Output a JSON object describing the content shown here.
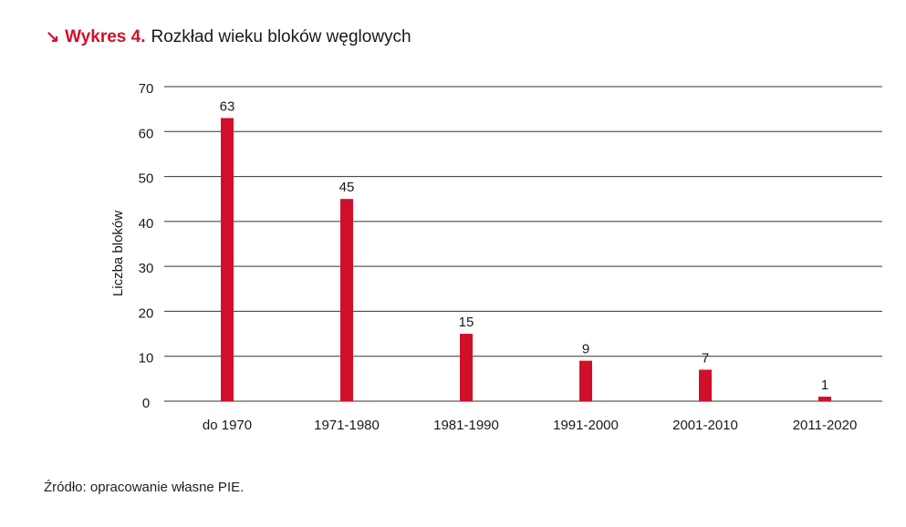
{
  "header": {
    "arrow_glyph": "↘",
    "label": "Wykres 4.",
    "title": "Rozkład wieku bloków węglowych"
  },
  "footer": {
    "source": "Źródło: opracowanie własne PIE."
  },
  "colors": {
    "accent": "#d0102a",
    "text": "#1a1a1a",
    "grid": "#333333"
  },
  "chart_data": {
    "type": "bar",
    "title": "Rozkład wieku bloków węglowych",
    "xlabel": "",
    "ylabel": "Liczba bloków",
    "categories": [
      "do 1970",
      "1971-1980",
      "1981-1990",
      "1991-2000",
      "2001-2010",
      "2011-2020"
    ],
    "values": [
      63,
      45,
      15,
      9,
      7,
      1
    ],
    "data_labels": [
      "63",
      "45",
      "15",
      "9",
      "7",
      "1"
    ],
    "ylim": [
      0,
      70
    ],
    "yticks": [
      0,
      10,
      20,
      30,
      40,
      50,
      60,
      70
    ],
    "grid": true,
    "bar_color": "#d0102a"
  }
}
